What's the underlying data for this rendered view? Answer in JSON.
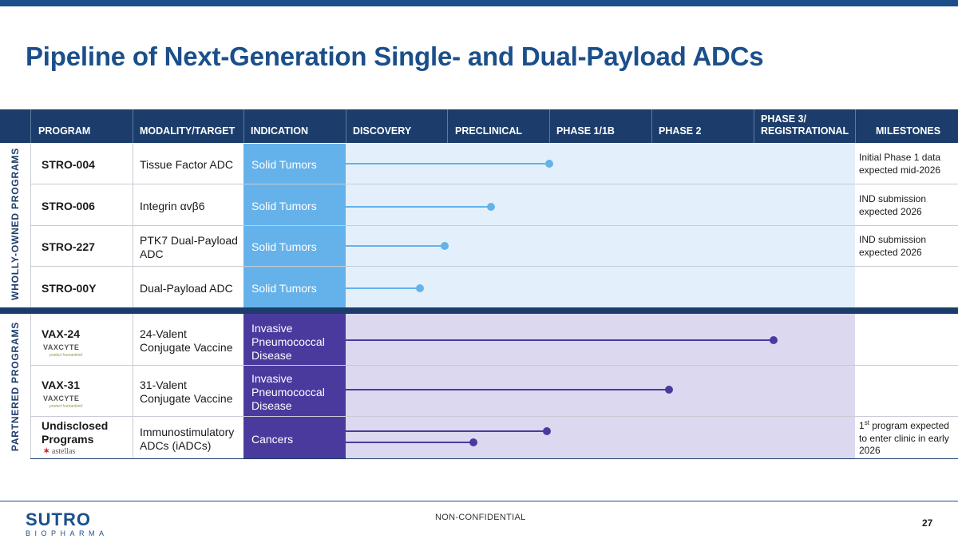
{
  "title": "Pipeline of Next-Generation Single- and Dual-Payload ADCs",
  "headers": {
    "program": "PROGRAM",
    "modality": "MODALITY/TARGET",
    "indication": "INDICATION",
    "discovery": "DISCOVERY",
    "preclinical": "PRECLINICAL",
    "phase1": "PHASE 1/1B",
    "phase2": "PHASE 2",
    "phase3_line1": "PHASE 3/",
    "phase3_line2": "REGISTRATIONAL",
    "milestones": "MILESTONES"
  },
  "sections": {
    "wholly_owned": "WHOLLY-OWNED PROGRAMS",
    "partnered": "PARTNERED PROGRAMS"
  },
  "wholly_owned_rows": [
    {
      "program": "STRO-004",
      "modality": "Tissue Factor ADC",
      "indication": "Solid Tumors",
      "milestone": "Initial Phase 1 data expected mid-2026",
      "progress": 0.4
    },
    {
      "program": "STRO-006",
      "modality": "Integrin αvβ6",
      "indication": "Solid Tumors",
      "milestone": "IND submission expected 2026",
      "progress": 0.285
    },
    {
      "program": "STRO-227",
      "modality": "PTK7 Dual-Payload ADC",
      "indication": "Solid Tumors",
      "milestone": "IND submission expected 2026",
      "progress": 0.195
    },
    {
      "program": "STRO-00Y",
      "modality": "Dual-Payload ADC",
      "indication": "Solid Tumors",
      "milestone": "",
      "progress": 0.145
    }
  ],
  "partnered_rows": [
    {
      "program": "VAX-24",
      "modality": "24-Valent Conjugate Vaccine",
      "indication": "Invasive Pneumococcal Disease",
      "milestone": "",
      "progress": 0.84,
      "logo": "VAXCYTE"
    },
    {
      "program": "VAX-31",
      "modality": "31-Valent Conjugate Vaccine",
      "indication": "Invasive Pneumococcal Disease",
      "milestone": "",
      "progress": 0.635,
      "logo": "VAXCYTE"
    }
  ],
  "undisclosed": {
    "program_line1": "Undisclosed",
    "program_line2": "Programs",
    "modality": "Immunostimulatory ADCs (iADCs)",
    "indication": "Cancers",
    "milestone_prefix": "1",
    "milestone_sup": "st",
    "milestone_rest": " program expected to enter clinic in early 2026",
    "progress_a": 0.395,
    "progress_b": 0.25,
    "logo": "astellas"
  },
  "vaxcyte_tagline": "protect humankind",
  "footer": {
    "logo_main": "SUTRO",
    "logo_sub": "BIOPHARMA",
    "classification": "NON-CONFIDENTIAL",
    "page": "27"
  },
  "colors": {
    "brand": "#1b4f8a",
    "header": "#1c3d6b",
    "wholly_light": "#e3f0fb",
    "wholly_accent": "#65b2ea",
    "partnered_light": "#dcd8ef",
    "partnered_accent": "#4b3a9e"
  }
}
